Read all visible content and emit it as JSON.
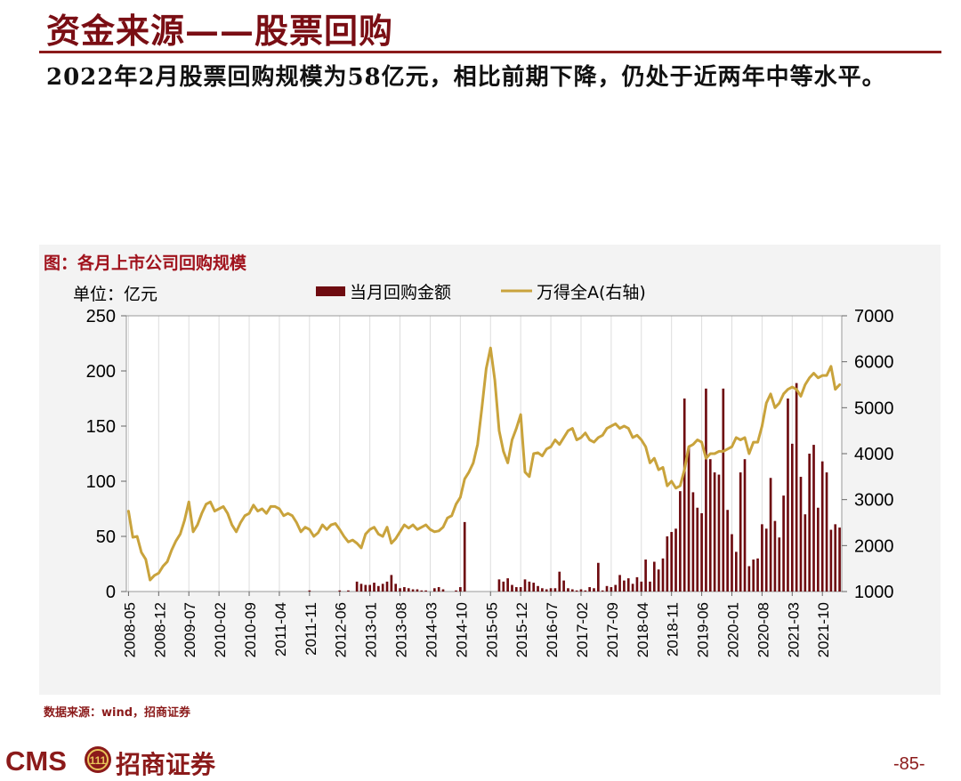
{
  "slide": {
    "title": "资金来源——股票回购",
    "summary": "2022年2月股票回购规模为58亿元，相比前期下降，仍处于近两年中等水平。",
    "figure_title": "图：各月上市公司回购规模",
    "source": "数据来源：wind，招商证券",
    "page_number": "-85-"
  },
  "logo": {
    "latin": "CMS",
    "mark_text": "111",
    "chinese": "招商证券"
  },
  "colors": {
    "bar": "#6e0b10",
    "line": "#c9a33c",
    "brand": "#8b1a1a"
  },
  "chart_data": {
    "type": "bar+line",
    "unit_label": "单位：亿元",
    "legend_position": "top-center",
    "left_axis": {
      "min": 0,
      "max": 250,
      "ticks": [
        0,
        50,
        100,
        150,
        200,
        250
      ]
    },
    "right_axis": {
      "min": 1000,
      "max": 7000,
      "ticks": [
        1000,
        2000,
        3000,
        4000,
        5000,
        6000,
        7000
      ]
    },
    "x_start": "2008-05",
    "x_end": "2022-02",
    "x_tick_labels": [
      "2008-05",
      "2008-12",
      "2009-07",
      "2010-02",
      "2010-09",
      "2011-04",
      "2011-11",
      "2012-06",
      "2013-01",
      "2013-08",
      "2014-03",
      "2014-10",
      "2015-05",
      "2015-12",
      "2016-07",
      "2017-02",
      "2017-09",
      "2018-04",
      "2018-11",
      "2019-06",
      "2020-01",
      "2020-08",
      "2021-03",
      "2021-10"
    ],
    "series": [
      {
        "name": "当月回购金额",
        "type": "bar",
        "axis": "left",
        "points": [
          [
            "2011-11",
            1
          ],
          [
            "2012-06",
            1
          ],
          [
            "2012-08",
            1
          ],
          [
            "2012-10",
            9
          ],
          [
            "2012-11",
            7
          ],
          [
            "2012-12",
            6
          ],
          [
            "2013-01",
            6
          ],
          [
            "2013-02",
            8
          ],
          [
            "2013-03",
            5
          ],
          [
            "2013-04",
            7
          ],
          [
            "2013-05",
            9
          ],
          [
            "2013-06",
            15
          ],
          [
            "2013-07",
            7
          ],
          [
            "2013-08",
            3
          ],
          [
            "2013-09",
            4
          ],
          [
            "2013-10",
            3
          ],
          [
            "2013-11",
            2
          ],
          [
            "2013-12",
            2
          ],
          [
            "2014-01",
            1
          ],
          [
            "2014-02",
            1
          ],
          [
            "2014-04",
            3
          ],
          [
            "2014-05",
            4
          ],
          [
            "2014-06",
            2
          ],
          [
            "2014-09",
            1
          ],
          [
            "2014-10",
            4
          ],
          [
            "2014-11",
            63
          ],
          [
            "2015-07",
            11
          ],
          [
            "2015-08",
            9
          ],
          [
            "2015-09",
            12
          ],
          [
            "2015-10",
            6
          ],
          [
            "2015-11",
            4
          ],
          [
            "2015-12",
            4
          ],
          [
            "2016-01",
            11
          ],
          [
            "2016-02",
            9
          ],
          [
            "2016-03",
            8
          ],
          [
            "2016-04",
            5
          ],
          [
            "2016-05",
            3
          ],
          [
            "2016-06",
            2
          ],
          [
            "2016-07",
            3
          ],
          [
            "2016-08",
            3
          ],
          [
            "2016-09",
            18
          ],
          [
            "2016-10",
            10
          ],
          [
            "2016-11",
            3
          ],
          [
            "2016-12",
            2
          ],
          [
            "2017-01",
            1
          ],
          [
            "2017-02",
            2
          ],
          [
            "2017-03",
            1
          ],
          [
            "2017-04",
            4
          ],
          [
            "2017-05",
            3
          ],
          [
            "2017-06",
            26
          ],
          [
            "2017-07",
            1
          ],
          [
            "2017-08",
            5
          ],
          [
            "2017-09",
            4
          ],
          [
            "2017-10",
            6
          ],
          [
            "2017-11",
            15
          ],
          [
            "2017-12",
            10
          ],
          [
            "2018-01",
            12
          ],
          [
            "2018-02",
            7
          ],
          [
            "2018-03",
            13
          ],
          [
            "2018-04",
            9
          ],
          [
            "2018-05",
            29
          ],
          [
            "2018-06",
            9
          ],
          [
            "2018-07",
            27
          ],
          [
            "2018-08",
            20
          ],
          [
            "2018-09",
            30
          ],
          [
            "2018-10",
            50
          ],
          [
            "2018-11",
            54
          ],
          [
            "2018-12",
            57
          ],
          [
            "2019-01",
            91
          ],
          [
            "2019-02",
            175
          ],
          [
            "2019-03",
            131
          ],
          [
            "2019-04",
            90
          ],
          [
            "2019-05",
            76
          ],
          [
            "2019-06",
            71
          ],
          [
            "2019-07",
            184
          ],
          [
            "2019-08",
            120
          ],
          [
            "2019-09",
            108
          ],
          [
            "2019-10",
            106
          ],
          [
            "2019-11",
            184
          ],
          [
            "2019-12",
            74
          ],
          [
            "2020-01",
            52
          ],
          [
            "2020-02",
            36
          ],
          [
            "2020-03",
            108
          ],
          [
            "2020-04",
            120
          ],
          [
            "2020-05",
            23
          ],
          [
            "2020-06",
            29
          ],
          [
            "2020-07",
            30
          ],
          [
            "2020-08",
            61
          ],
          [
            "2020-09",
            57
          ],
          [
            "2020-10",
            103
          ],
          [
            "2020-11",
            64
          ],
          [
            "2020-12",
            49
          ],
          [
            "2021-01",
            87
          ],
          [
            "2021-02",
            175
          ],
          [
            "2021-03",
            134
          ],
          [
            "2021-04",
            189
          ],
          [
            "2021-05",
            104
          ],
          [
            "2021-06",
            70
          ],
          [
            "2021-07",
            125
          ],
          [
            "2021-08",
            133
          ],
          [
            "2021-09",
            76
          ],
          [
            "2021-10",
            118
          ],
          [
            "2021-11",
            108
          ],
          [
            "2021-12",
            56
          ],
          [
            "2022-01",
            61
          ],
          [
            "2022-02",
            58
          ]
        ]
      },
      {
        "name": "万得全A(右轴)",
        "type": "line",
        "axis": "right",
        "points": [
          [
            "2008-05",
            2750
          ],
          [
            "2008-06",
            2180
          ],
          [
            "2008-07",
            2200
          ],
          [
            "2008-08",
            1850
          ],
          [
            "2008-09",
            1700
          ],
          [
            "2008-10",
            1250
          ],
          [
            "2008-11",
            1350
          ],
          [
            "2008-12",
            1400
          ],
          [
            "2009-01",
            1550
          ],
          [
            "2009-02",
            1650
          ],
          [
            "2009-03",
            1900
          ],
          [
            "2009-04",
            2100
          ],
          [
            "2009-05",
            2250
          ],
          [
            "2009-06",
            2550
          ],
          [
            "2009-07",
            2950
          ],
          [
            "2009-08",
            2300
          ],
          [
            "2009-09",
            2450
          ],
          [
            "2009-10",
            2700
          ],
          [
            "2009-11",
            2900
          ],
          [
            "2009-12",
            2950
          ],
          [
            "2010-01",
            2750
          ],
          [
            "2010-02",
            2800
          ],
          [
            "2010-03",
            2850
          ],
          [
            "2010-04",
            2700
          ],
          [
            "2010-05",
            2450
          ],
          [
            "2010-06",
            2300
          ],
          [
            "2010-07",
            2500
          ],
          [
            "2010-08",
            2650
          ],
          [
            "2010-09",
            2700
          ],
          [
            "2010-10",
            2880
          ],
          [
            "2010-11",
            2750
          ],
          [
            "2010-12",
            2800
          ],
          [
            "2011-01",
            2700
          ],
          [
            "2011-02",
            2850
          ],
          [
            "2011-03",
            2850
          ],
          [
            "2011-04",
            2800
          ],
          [
            "2011-05",
            2650
          ],
          [
            "2011-06",
            2700
          ],
          [
            "2011-07",
            2650
          ],
          [
            "2011-08",
            2500
          ],
          [
            "2011-09",
            2300
          ],
          [
            "2011-10",
            2400
          ],
          [
            "2011-11",
            2350
          ],
          [
            "2011-12",
            2200
          ],
          [
            "2012-01",
            2280
          ],
          [
            "2012-02",
            2450
          ],
          [
            "2012-03",
            2350
          ],
          [
            "2012-04",
            2450
          ],
          [
            "2012-05",
            2480
          ],
          [
            "2012-06",
            2350
          ],
          [
            "2012-07",
            2200
          ],
          [
            "2012-08",
            2080
          ],
          [
            "2012-09",
            2120
          ],
          [
            "2012-10",
            2050
          ],
          [
            "2012-11",
            1950
          ],
          [
            "2012-12",
            2250
          ],
          [
            "2013-01",
            2350
          ],
          [
            "2013-02",
            2400
          ],
          [
            "2013-03",
            2250
          ],
          [
            "2013-04",
            2200
          ],
          [
            "2013-05",
            2400
          ],
          [
            "2013-06",
            2050
          ],
          [
            "2013-07",
            2150
          ],
          [
            "2013-08",
            2300
          ],
          [
            "2013-09",
            2450
          ],
          [
            "2013-10",
            2380
          ],
          [
            "2013-11",
            2450
          ],
          [
            "2013-12",
            2350
          ],
          [
            "2014-01",
            2400
          ],
          [
            "2014-02",
            2450
          ],
          [
            "2014-03",
            2350
          ],
          [
            "2014-04",
            2300
          ],
          [
            "2014-05",
            2320
          ],
          [
            "2014-06",
            2400
          ],
          [
            "2014-07",
            2600
          ],
          [
            "2014-08",
            2650
          ],
          [
            "2014-09",
            2900
          ],
          [
            "2014-10",
            3050
          ],
          [
            "2014-11",
            3450
          ],
          [
            "2014-12",
            3600
          ],
          [
            "2015-01",
            3800
          ],
          [
            "2015-02",
            4200
          ],
          [
            "2015-03",
            5000
          ],
          [
            "2015-04",
            5850
          ],
          [
            "2015-05",
            6300
          ],
          [
            "2015-06",
            5600
          ],
          [
            "2015-07",
            4500
          ],
          [
            "2015-08",
            4050
          ],
          [
            "2015-09",
            3800
          ],
          [
            "2015-10",
            4300
          ],
          [
            "2015-11",
            4550
          ],
          [
            "2015-12",
            4850
          ],
          [
            "2016-01",
            3600
          ],
          [
            "2016-02",
            3500
          ],
          [
            "2016-03",
            4000
          ],
          [
            "2016-04",
            4020
          ],
          [
            "2016-05",
            3950
          ],
          [
            "2016-06",
            4100
          ],
          [
            "2016-07",
            4150
          ],
          [
            "2016-08",
            4300
          ],
          [
            "2016-09",
            4200
          ],
          [
            "2016-10",
            4350
          ],
          [
            "2016-11",
            4500
          ],
          [
            "2016-12",
            4550
          ],
          [
            "2017-01",
            4300
          ],
          [
            "2017-02",
            4350
          ],
          [
            "2017-03",
            4450
          ],
          [
            "2017-04",
            4300
          ],
          [
            "2017-05",
            4250
          ],
          [
            "2017-06",
            4350
          ],
          [
            "2017-07",
            4400
          ],
          [
            "2017-08",
            4550
          ],
          [
            "2017-09",
            4600
          ],
          [
            "2017-10",
            4650
          ],
          [
            "2017-11",
            4550
          ],
          [
            "2017-12",
            4600
          ],
          [
            "2018-01",
            4550
          ],
          [
            "2018-02",
            4350
          ],
          [
            "2018-03",
            4400
          ],
          [
            "2018-04",
            4300
          ],
          [
            "2018-05",
            4150
          ],
          [
            "2018-06",
            3800
          ],
          [
            "2018-07",
            3900
          ],
          [
            "2018-08",
            3650
          ],
          [
            "2018-09",
            3700
          ],
          [
            "2018-10",
            3300
          ],
          [
            "2018-11",
            3400
          ],
          [
            "2018-12",
            3250
          ],
          [
            "2019-01",
            3300
          ],
          [
            "2019-02",
            3650
          ],
          [
            "2019-03",
            4150
          ],
          [
            "2019-04",
            4200
          ],
          [
            "2019-05",
            4300
          ],
          [
            "2019-06",
            4250
          ],
          [
            "2019-07",
            3900
          ],
          [
            "2019-08",
            4000
          ],
          [
            "2019-09",
            4000
          ],
          [
            "2019-10",
            4050
          ],
          [
            "2019-11",
            4050
          ],
          [
            "2019-12",
            4100
          ],
          [
            "2020-01",
            4150
          ],
          [
            "2020-02",
            4350
          ],
          [
            "2020-03",
            4300
          ],
          [
            "2020-04",
            4350
          ],
          [
            "2020-05",
            4000
          ],
          [
            "2020-06",
            4250
          ],
          [
            "2020-07",
            4250
          ],
          [
            "2020-08",
            4600
          ],
          [
            "2020-09",
            5100
          ],
          [
            "2020-10",
            5300
          ],
          [
            "2020-11",
            5000
          ],
          [
            "2020-12",
            5100
          ],
          [
            "2021-01",
            5300
          ],
          [
            "2021-02",
            5400
          ],
          [
            "2021-03",
            5450
          ],
          [
            "2021-04",
            5400
          ],
          [
            "2021-05",
            5250
          ],
          [
            "2021-06",
            5500
          ],
          [
            "2021-07",
            5650
          ],
          [
            "2021-08",
            5750
          ],
          [
            "2021-09",
            5650
          ],
          [
            "2021-10",
            5700
          ],
          [
            "2021-11",
            5700
          ],
          [
            "2021-12",
            5900
          ],
          [
            "2022-01",
            5400
          ],
          [
            "2022-02",
            5500
          ]
        ]
      }
    ]
  }
}
